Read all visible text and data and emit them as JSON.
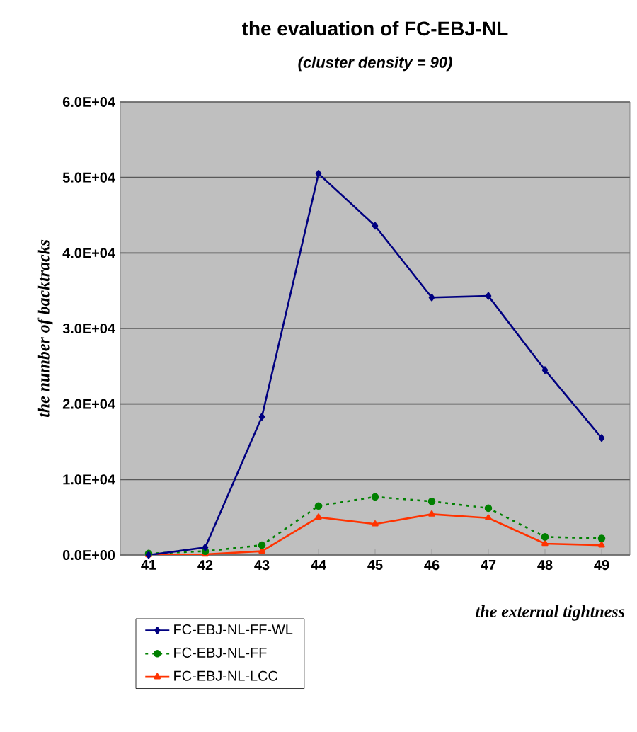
{
  "chart_data": {
    "type": "line",
    "title": "the evaluation of FC-EBJ-NL",
    "subtitle": "(cluster density = 90)",
    "xlabel": "the external tightness",
    "ylabel": "the number of backtracks",
    "categories": [
      "41",
      "42",
      "43",
      "44",
      "45",
      "46",
      "47",
      "48",
      "49"
    ],
    "series": [
      {
        "name": "FC-EBJ-NL-FF-WL",
        "color": "#000080",
        "marker": "diamond",
        "line_style": "solid",
        "values": [
          0,
          1000,
          18300,
          50500,
          43600,
          34100,
          34300,
          24500,
          15500
        ]
      },
      {
        "name": "FC-EBJ-NL-FF",
        "color": "#008000",
        "marker": "circle",
        "line_style": "dotted",
        "values": [
          200,
          500,
          1300,
          6500,
          7700,
          7100,
          6200,
          2400,
          2200
        ]
      },
      {
        "name": "FC-EBJ-NL-LCC",
        "color": "#ff3300",
        "marker": "triangle",
        "line_style": "solid",
        "values": [
          0,
          100,
          500,
          5000,
          4100,
          5400,
          4900,
          1500,
          1300
        ]
      }
    ],
    "ylim": [
      0,
      60000
    ],
    "yticks": [
      {
        "value": 0,
        "label": "0.0E+00"
      },
      {
        "value": 10000,
        "label": "1.0E+04"
      },
      {
        "value": 20000,
        "label": "2.0E+04"
      },
      {
        "value": 30000,
        "label": "3.0E+04"
      },
      {
        "value": 40000,
        "label": "4.0E+04"
      },
      {
        "value": 50000,
        "label": "5.0E+04"
      },
      {
        "value": 60000,
        "label": "6.0E+04"
      }
    ],
    "grid": "y",
    "legend": "bottom left"
  }
}
